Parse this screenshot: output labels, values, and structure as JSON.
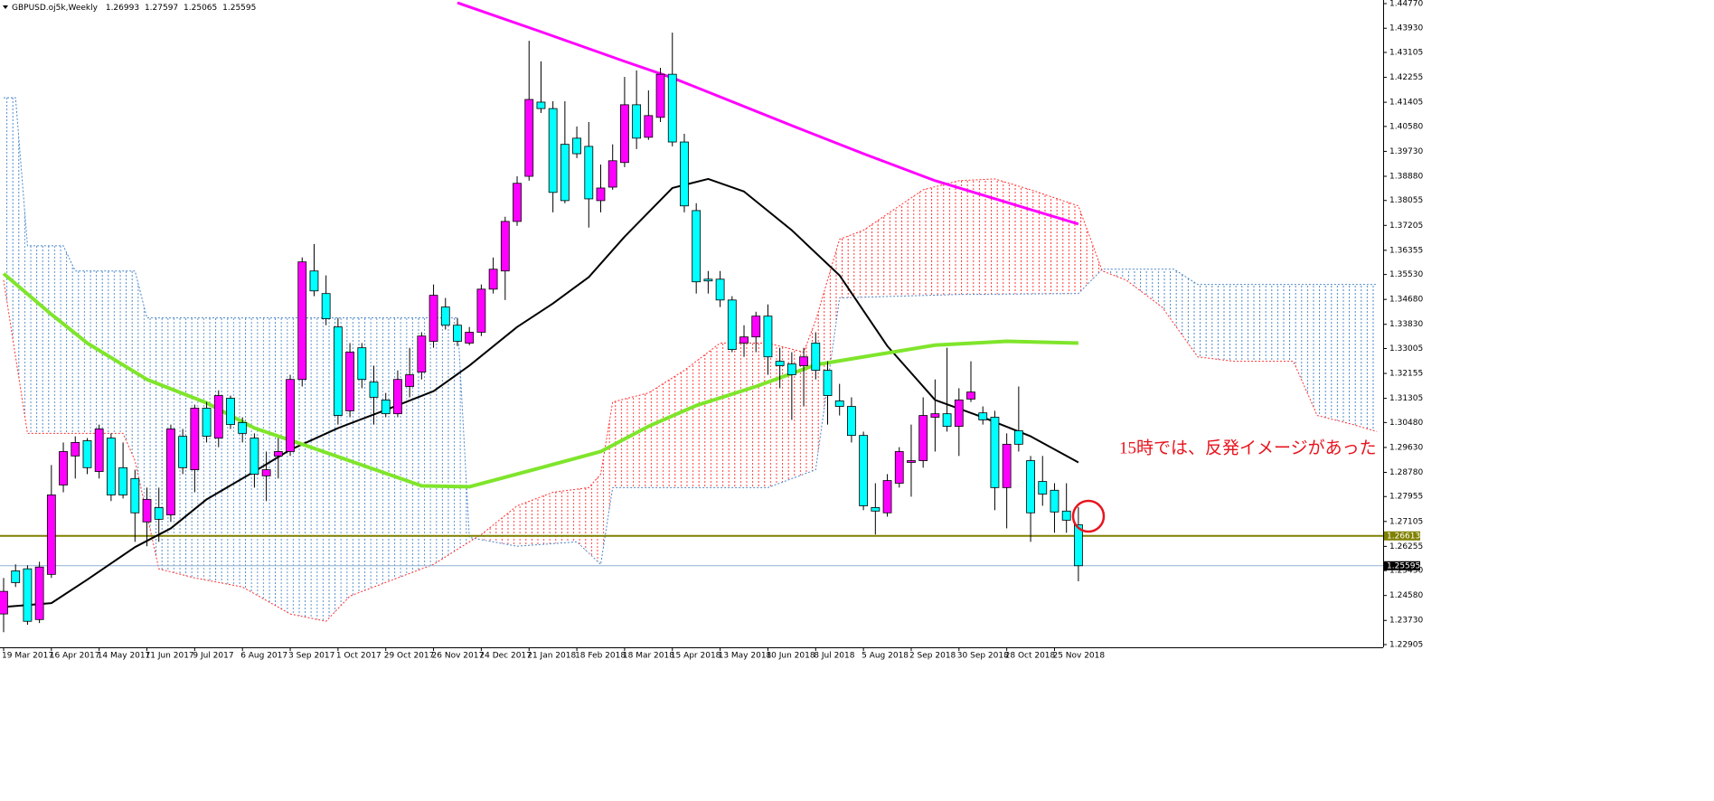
{
  "chart_data": {
    "type": "candlestick",
    "title": "GBPUSD.oj5k,Weekly",
    "annotation": "15時では、反発イメージがあった",
    "up_color": "#ff00ff",
    "down_color": "#00ffff",
    "ylim": [
      1.22905,
      1.4477
    ],
    "yticks": [
      {
        "value": 1.4477,
        "label": "1.44770"
      },
      {
        "value": 1.4393,
        "label": "1.43930"
      },
      {
        "value": 1.43105,
        "label": "1.43105"
      },
      {
        "value": 1.42255,
        "label": "1.42255"
      },
      {
        "value": 1.41405,
        "label": "1.41405"
      },
      {
        "value": 1.4058,
        "label": "1.40580"
      },
      {
        "value": 1.3973,
        "label": "1.39730"
      },
      {
        "value": 1.3888,
        "label": "1.38880"
      },
      {
        "value": 1.38055,
        "label": "1.38055"
      },
      {
        "value": 1.37205,
        "label": "1.37205"
      },
      {
        "value": 1.36355,
        "label": "1.36355"
      },
      {
        "value": 1.3553,
        "label": "1.35530"
      },
      {
        "value": 1.3468,
        "label": "1.34680"
      },
      {
        "value": 1.3383,
        "label": "1.33830"
      },
      {
        "value": 1.33005,
        "label": "1.33005"
      },
      {
        "value": 1.32155,
        "label": "1.32155"
      },
      {
        "value": 1.31305,
        "label": "1.31305"
      },
      {
        "value": 1.3048,
        "label": "1.30480"
      },
      {
        "value": 1.2963,
        "label": "1.29630"
      },
      {
        "value": 1.2878,
        "label": "1.28780"
      },
      {
        "value": 1.27955,
        "label": "1.27955"
      },
      {
        "value": 1.27105,
        "label": "1.27105"
      },
      {
        "value": 1.26255,
        "label": "1.26255"
      },
      {
        "value": 1.2543,
        "label": "1.25430"
      },
      {
        "value": 1.2458,
        "label": "1.24580"
      },
      {
        "value": 1.2373,
        "label": "1.23730"
      },
      {
        "value": 1.22905,
        "label": "1.22905"
      }
    ],
    "categories": [
      "19 Mar 2017",
      null,
      null,
      null,
      "16 Apr 2017",
      null,
      null,
      null,
      "14 May 2017",
      null,
      null,
      null,
      "11 Jun 2017",
      null,
      null,
      null,
      "9 Jul 2017",
      null,
      null,
      null,
      "6 Aug 2017",
      null,
      null,
      null,
      "3 Sep 2017",
      null,
      null,
      null,
      "1 Oct 2017",
      null,
      null,
      null,
      "29 Oct 2017",
      null,
      null,
      null,
      "26 Nov 2017",
      null,
      null,
      null,
      "24 Dec 2017",
      null,
      null,
      null,
      "21 Jan 2018",
      null,
      null,
      null,
      "18 Feb 2018",
      null,
      null,
      null,
      "18 Mar 2018",
      null,
      null,
      null,
      "15 Apr 2018",
      null,
      null,
      null,
      "13 May 2018",
      null,
      null,
      null,
      "10 Jun 2018",
      null,
      null,
      null,
      "8 Jul 2018",
      null,
      null,
      null,
      "5 Aug 2018",
      null,
      null,
      null,
      "2 Sep 2018",
      null,
      null,
      null,
      "30 Sep 2018",
      null,
      null,
      null,
      "28 Oct 2018",
      null,
      null,
      null,
      "25 Nov 2018",
      null,
      null
    ],
    "ohlc": [
      [
        1.2395,
        1.2518,
        1.2333,
        1.2472
      ],
      [
        1.2542,
        1.2564,
        1.2487,
        1.2502
      ],
      [
        1.2549,
        1.2561,
        1.2358,
        1.237
      ],
      [
        1.2376,
        1.2573,
        1.2364,
        1.2555
      ],
      [
        1.253,
        1.2903,
        1.2518,
        1.2801
      ],
      [
        1.2835,
        1.298,
        1.281,
        1.2949
      ],
      [
        1.2934,
        1.3001,
        1.2857,
        1.298
      ],
      [
        1.2986,
        1.2995,
        1.2872,
        1.2894
      ],
      [
        1.2881,
        1.3041,
        1.2857,
        1.3026
      ],
      [
        1.2995,
        1.3011,
        1.278,
        1.2801
      ],
      [
        1.2894,
        1.298,
        1.2789,
        1.2801
      ],
      [
        1.2857,
        1.2887,
        1.2641,
        1.274
      ],
      [
        1.2709,
        1.2826,
        1.2626,
        1.2786
      ],
      [
        1.2758,
        1.2826,
        1.2641,
        1.2718
      ],
      [
        1.2733,
        1.3041,
        1.2709,
        1.3026
      ],
      [
        1.3001,
        1.3026,
        1.2872,
        1.2894
      ],
      [
        1.2887,
        1.3109,
        1.281,
        1.3097
      ],
      [
        1.3097,
        1.3118,
        1.298,
        1.3001
      ],
      [
        1.2995,
        1.3158,
        1.2964,
        1.314
      ],
      [
        1.3131,
        1.314,
        1.3026,
        1.3041
      ],
      [
        1.3048,
        1.3066,
        1.298,
        1.3011
      ],
      [
        1.2995,
        1.3011,
        1.2826,
        1.2872
      ],
      [
        1.2866,
        1.2949,
        1.278,
        1.2887
      ],
      [
        1.2934,
        1.2995,
        1.2857,
        1.2949
      ],
      [
        1.2949,
        1.3211,
        1.2934,
        1.3195
      ],
      [
        1.3195,
        1.3611,
        1.3171,
        1.3596
      ],
      [
        1.3565,
        1.3657,
        1.3479,
        1.3497
      ],
      [
        1.3488,
        1.355,
        1.338,
        1.3402
      ],
      [
        1.3374,
        1.3405,
        1.3041,
        1.3072
      ],
      [
        1.3088,
        1.3319,
        1.3066,
        1.3288
      ],
      [
        1.3303,
        1.3319,
        1.3165,
        1.3195
      ],
      [
        1.3186,
        1.3242,
        1.3041,
        1.3134
      ],
      [
        1.3125,
        1.3149,
        1.3066,
        1.3078
      ],
      [
        1.3078,
        1.3226,
        1.3066,
        1.3195
      ],
      [
        1.3171,
        1.3303,
        1.3134,
        1.3211
      ],
      [
        1.322,
        1.3356,
        1.3195,
        1.3343
      ],
      [
        1.3325,
        1.3519,
        1.3303,
        1.3482
      ],
      [
        1.3442,
        1.3473,
        1.3365,
        1.338
      ],
      [
        1.338,
        1.3405,
        1.3309,
        1.3325
      ],
      [
        1.3319,
        1.3374,
        1.3312,
        1.3356
      ],
      [
        1.3356,
        1.3519,
        1.3343,
        1.3503
      ],
      [
        1.3503,
        1.3611,
        1.3488,
        1.3571
      ],
      [
        1.3565,
        1.375,
        1.3466,
        1.3734
      ],
      [
        1.3734,
        1.3888,
        1.3719,
        1.3864
      ],
      [
        1.3888,
        1.435,
        1.3873,
        1.415
      ],
      [
        1.4141,
        1.428,
        1.4104,
        1.4119
      ],
      [
        1.4119,
        1.4144,
        1.3765,
        1.3833
      ],
      [
        1.3997,
        1.4144,
        1.3796,
        1.3805
      ],
      [
        1.4018,
        1.4058,
        1.395,
        1.3965
      ],
      [
        1.399,
        1.4073,
        1.3713,
        1.3811
      ],
      [
        1.3805,
        1.3928,
        1.3765,
        1.3848
      ],
      [
        1.3851,
        1.3997,
        1.3842,
        1.3941
      ],
      [
        1.3935,
        1.4227,
        1.3919,
        1.4132
      ],
      [
        1.4132,
        1.4249,
        1.3981,
        1.4018
      ],
      [
        1.4021,
        1.4181,
        1.4012,
        1.4095
      ],
      [
        1.4089,
        1.4258,
        1.4073,
        1.4236
      ],
      [
        1.4236,
        1.4378,
        1.399,
        1.4005
      ],
      [
        1.4005,
        1.4033,
        1.3765,
        1.3787
      ],
      [
        1.3771,
        1.3796,
        1.3488,
        1.3528
      ],
      [
        1.3537,
        1.3565,
        1.3488,
        1.3531
      ],
      [
        1.3537,
        1.3565,
        1.3442,
        1.3466
      ],
      [
        1.3466,
        1.3479,
        1.3288,
        1.3297
      ],
      [
        1.3319,
        1.338,
        1.3272,
        1.334
      ],
      [
        1.334,
        1.3426,
        1.3288,
        1.3411
      ],
      [
        1.3411,
        1.3451,
        1.3211,
        1.3272
      ],
      [
        1.3257,
        1.3303,
        1.3165,
        1.3242
      ],
      [
        1.3248,
        1.3288,
        1.3057,
        1.3211
      ],
      [
        1.3242,
        1.3303,
        1.3103,
        1.3272
      ],
      [
        1.3319,
        1.3356,
        1.3195,
        1.3226
      ],
      [
        1.3226,
        1.3257,
        1.3041,
        1.314
      ],
      [
        1.3122,
        1.318,
        1.3072,
        1.3103
      ],
      [
        1.3103,
        1.3134,
        1.298,
        1.3004
      ],
      [
        1.3004,
        1.3017,
        1.2749,
        1.2764
      ],
      [
        1.2758,
        1.2841,
        1.2666,
        1.2746
      ],
      [
        1.274,
        1.2872,
        1.2727,
        1.285
      ],
      [
        1.2841,
        1.2964,
        1.2826,
        1.2949
      ],
      [
        1.2912,
        1.3041,
        1.2795,
        1.2918
      ],
      [
        1.2918,
        1.3134,
        1.2894,
        1.3072
      ],
      [
        1.3066,
        1.3195,
        1.2949,
        1.3078
      ],
      [
        1.3078,
        1.3303,
        1.3017,
        1.3035
      ],
      [
        1.3035,
        1.3165,
        1.2934,
        1.3125
      ],
      [
        1.3128,
        1.3257,
        1.3118,
        1.3152
      ],
      [
        1.3081,
        1.3103,
        1.3041,
        1.3057
      ],
      [
        1.3066,
        1.3088,
        1.2749,
        1.2826
      ],
      [
        1.2826,
        1.3011,
        1.2687,
        1.2974
      ],
      [
        1.302,
        1.3171,
        1.2949,
        1.2974
      ],
      [
        1.2918,
        1.2934,
        1.2641,
        1.274
      ],
      [
        1.2847,
        1.2934,
        1.2764,
        1.2804
      ],
      [
        1.2817,
        1.2841,
        1.2672,
        1.2743
      ],
      [
        1.2746,
        1.2841,
        1.2672,
        1.2715
      ],
      [
        1.26993,
        1.27597,
        1.25065,
        1.25595
      ]
    ],
    "lines": [
      {
        "color": "#ff00ff",
        "width": 3,
        "x": [
          38,
          45,
          52,
          56,
          60,
          66,
          72,
          78,
          84,
          90
        ],
        "values": [
          1.448,
          1.4381,
          1.428,
          1.4224,
          1.4159,
          1.4061,
          1.3965,
          1.3873,
          1.3799,
          1.3725
        ]
      },
      {
        "color": "#000000",
        "width": 2,
        "x": [
          0,
          4,
          7,
          11,
          14,
          17,
          21,
          24,
          28,
          32,
          36,
          39,
          43,
          46,
          49,
          52,
          56,
          59,
          62,
          66,
          70,
          74,
          78,
          82,
          86,
          90
        ],
        "values": [
          1.2419,
          1.2432,
          1.2512,
          1.2623,
          1.2687,
          1.2786,
          1.2881,
          1.2955,
          1.3029,
          1.3091,
          1.3155,
          1.3242,
          1.3374,
          1.3454,
          1.3544,
          1.3682,
          1.3848,
          1.3879,
          1.3836,
          1.3704,
          1.355,
          1.3309,
          1.3125,
          1.3066,
          1.3001,
          1.2912
        ]
      },
      {
        "color": "#7fe52b",
        "width": 4,
        "x": [
          0,
          4,
          7,
          12,
          17,
          21,
          25,
          30,
          35,
          39,
          45,
          50,
          54,
          58,
          63,
          68,
          72,
          78,
          84,
          90
        ],
        "values": [
          1.3556,
          1.3417,
          1.3319,
          1.3195,
          1.3115,
          1.3029,
          1.2974,
          1.2903,
          1.2832,
          1.2829,
          1.2894,
          1.2949,
          1.3035,
          1.3106,
          1.3171,
          1.3245,
          1.3272,
          1.3312,
          1.3325,
          1.3319
        ]
      }
    ],
    "cloud": {
      "span_a": {
        "color": "#4a86c8",
        "x": [
          0,
          1,
          2,
          5,
          6,
          11,
          12,
          38,
          39,
          43,
          48,
          50,
          51,
          64,
          68,
          70,
          80,
          90,
          92,
          98,
          100,
          115
        ],
        "values": [
          1.4156,
          1.4156,
          1.3651,
          1.3651,
          1.3565,
          1.3565,
          1.3405,
          1.3405,
          1.2656,
          1.2626,
          1.2641,
          1.2564,
          1.2826,
          1.2826,
          1.2887,
          1.3473,
          1.3485,
          1.3488,
          1.3571,
          1.3571,
          1.3519,
          1.3519
        ]
      },
      "span_b": {
        "color": "#ff3030",
        "x": [
          0,
          2,
          10,
          11,
          13,
          16,
          20,
          24,
          27,
          29,
          33,
          36,
          39,
          40,
          43,
          46,
          49,
          50,
          51,
          54,
          57,
          60,
          64,
          67,
          68,
          70,
          72,
          77,
          80,
          83,
          86,
          90,
          92,
          94,
          97,
          100,
          103,
          108,
          110,
          113,
          115
        ],
        "values": [
          1.3534,
          1.3011,
          1.3011,
          1.2918,
          1.2549,
          1.2518,
          1.2487,
          1.2395,
          1.237,
          1.2456,
          1.2518,
          1.2564,
          1.2641,
          1.2666,
          1.2764,
          1.281,
          1.2826,
          1.2872,
          1.3118,
          1.3149,
          1.3226,
          1.3319,
          1.3319,
          1.3288,
          1.3396,
          1.3673,
          1.3704,
          1.3842,
          1.3873,
          1.3879,
          1.3842,
          1.3787,
          1.3565,
          1.3534,
          1.3442,
          1.3272,
          1.3257,
          1.3257,
          1.3072,
          1.3041,
          1.3017
        ]
      }
    },
    "hlines": [
      {
        "value": 1.26613,
        "color": "#808000",
        "label_bg": "#808000"
      },
      {
        "value": 1.25595,
        "color": "#8fb0d0",
        "label_bg": "#000000"
      }
    ]
  }
}
